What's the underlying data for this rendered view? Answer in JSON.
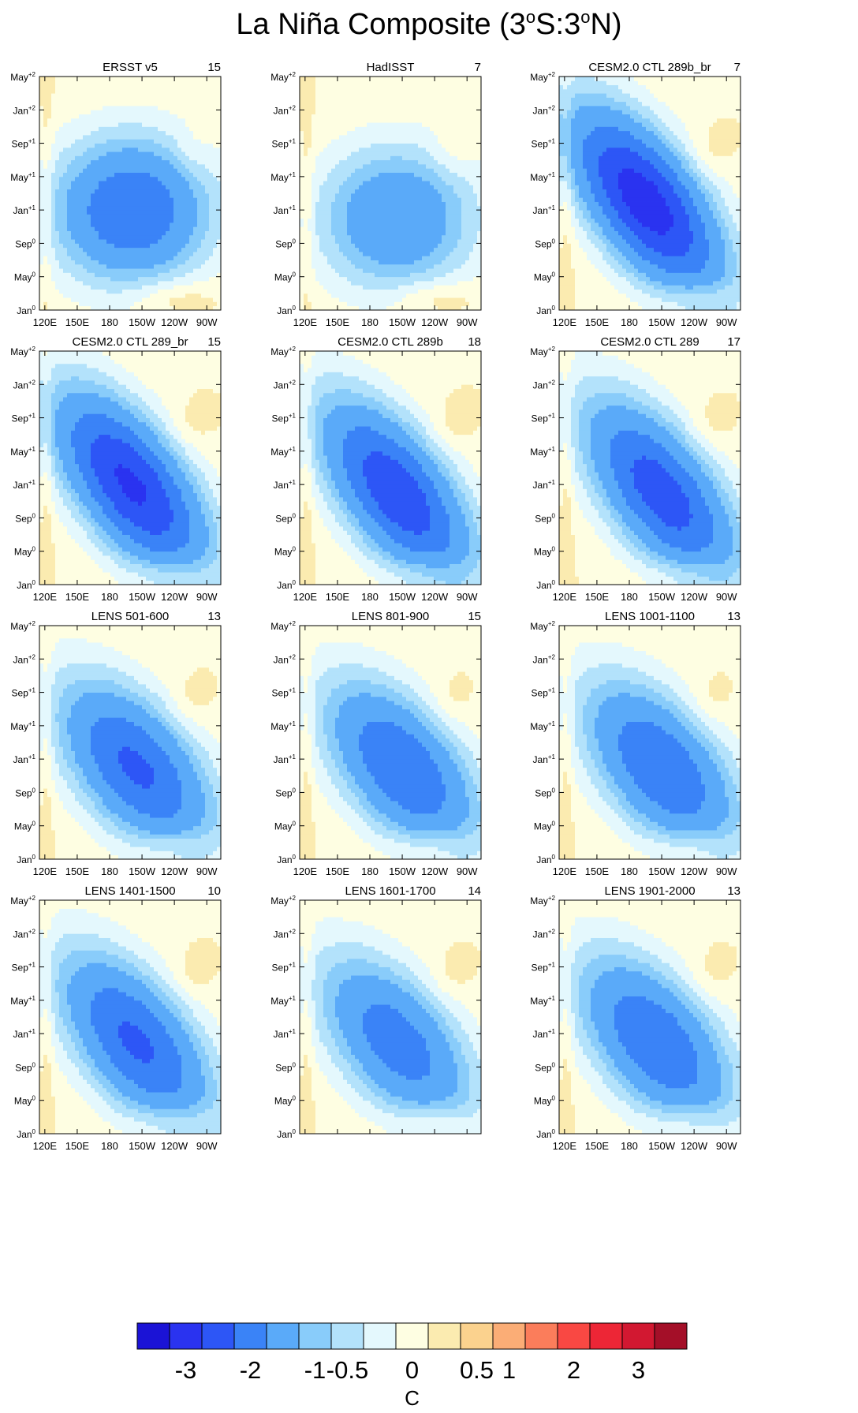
{
  "title": {
    "main": "La Niña Composite (3",
    "s1": "o",
    "mid": "S:3",
    "s2": "o",
    "end": "N)"
  },
  "chart_data": {
    "type": "heatmap",
    "figure_title": "La Niña Composite (3°S:3°N)",
    "x_ticks": [
      "120E",
      "150E",
      "180",
      "150W",
      "120W",
      "90W"
    ],
    "x_tick_lon": [
      120,
      150,
      180,
      210,
      240,
      270
    ],
    "x_range": [
      115,
      283
    ],
    "y_ticks": [
      {
        "base": "Jan",
        "sup": "0"
      },
      {
        "base": "May",
        "sup": "0"
      },
      {
        "base": "Sep",
        "sup": "0"
      },
      {
        "base": "Jan",
        "sup": "+1"
      },
      {
        "base": "May",
        "sup": "+1"
      },
      {
        "base": "Sep",
        "sup": "+1"
      },
      {
        "base": "Jan",
        "sup": "+2"
      },
      {
        "base": "May",
        "sup": "+2"
      }
    ],
    "y_tick_month": [
      0,
      4,
      8,
      12,
      16,
      20,
      24,
      28
    ],
    "y_range": [
      0,
      28
    ],
    "colorbar": {
      "levels": [
        "-3",
        "-2",
        "-1",
        "-0.5",
        "0",
        "0.5",
        "1",
        "2",
        "3"
      ],
      "colors": [
        "#1b13d6",
        "#2a33f0",
        "#2d56f6",
        "#3a83f7",
        "#5aaaf9",
        "#89ccfa",
        "#b3e2fb",
        "#e4f8fd",
        "#fefee2",
        "#fbebb0",
        "#fbd28e",
        "#fbad76",
        "#fb7d5b",
        "#f94843",
        "#ed2636",
        "#d21831",
        "#a40f28"
      ],
      "unit": "C"
    },
    "panels": [
      {
        "name": "ERSST v5",
        "count": "15",
        "min": -2.0,
        "coreLon": 200,
        "coreMon": 12,
        "tilt": 0.0,
        "xlabels": true
      },
      {
        "name": "HadISST",
        "count": "7",
        "min": -1.5,
        "coreLon": 205,
        "coreMon": 11,
        "tilt": 0.0,
        "xlabels": true
      },
      {
        "name": "CESM2.0 CTL 289b_br",
        "count": "7",
        "min": -2.8,
        "coreLon": 195,
        "coreMon": 13,
        "tilt": 0.1,
        "xlabels": true
      },
      {
        "name": "CESM2.0 CTL 289_br",
        "count": "15",
        "min": -2.6,
        "coreLon": 200,
        "coreMon": 12,
        "tilt": 0.1,
        "xlabels": true
      },
      {
        "name": "CESM2.0 CTL 289b",
        "count": "18",
        "min": -2.4,
        "coreLon": 205,
        "coreMon": 11,
        "tilt": 0.1,
        "xlabels": true
      },
      {
        "name": "CESM2.0 CTL 289",
        "count": "17",
        "min": -2.3,
        "coreLon": 210,
        "coreMon": 11,
        "tilt": 0.1,
        "xlabels": true
      },
      {
        "name": "LENS 501-600",
        "count": "13",
        "min": -2.1,
        "coreLon": 205,
        "coreMon": 11,
        "tilt": 0.08,
        "xlabels": true
      },
      {
        "name": "LENS 801-900",
        "count": "15",
        "min": -2.0,
        "coreLon": 210,
        "coreMon": 11,
        "tilt": 0.08,
        "xlabels": true
      },
      {
        "name": "LENS 1001-1100",
        "count": "13",
        "min": -2.0,
        "coreLon": 210,
        "coreMon": 11,
        "tilt": 0.08,
        "xlabels": true
      },
      {
        "name": "LENS 1401-1500",
        "count": "10",
        "min": -2.1,
        "coreLon": 205,
        "coreMon": 11,
        "tilt": 0.09,
        "xlabels": true
      },
      {
        "name": "LENS 1601-1700",
        "count": "14",
        "min": -1.8,
        "coreLon": 205,
        "coreMon": 11,
        "tilt": 0.08,
        "xlabels": false
      },
      {
        "name": "LENS 1901-2000",
        "count": "13",
        "min": -2.0,
        "coreLon": 205,
        "coreMon": 11,
        "tilt": 0.08,
        "xlabels": true
      }
    ]
  }
}
